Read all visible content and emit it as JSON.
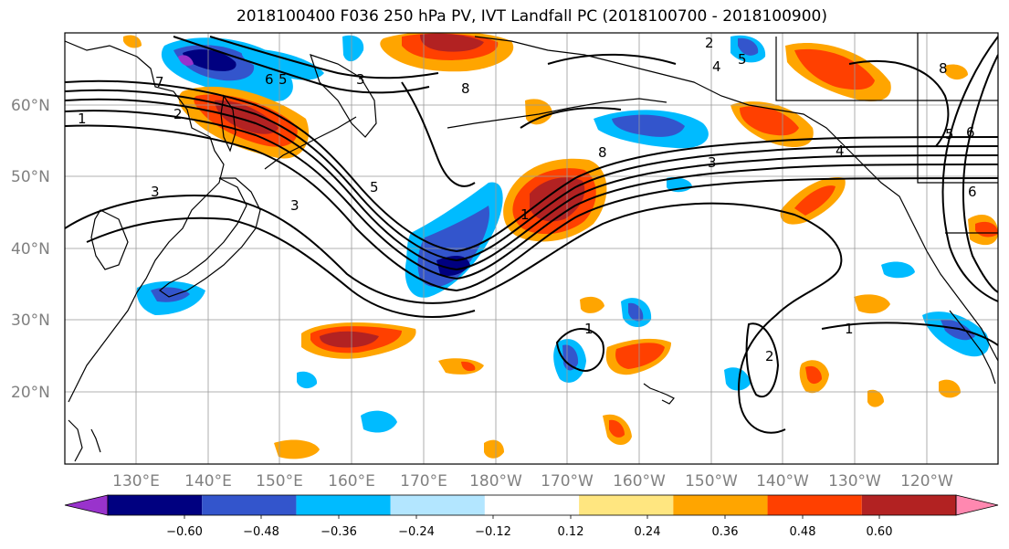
{
  "title": "2018100400 F036 250 hPa PV, IVT Landfall PC (2018100700 - 2018100900)",
  "latitude_labels": [
    "60°N",
    "50°N",
    "40°N",
    "30°N",
    "20°N"
  ],
  "longitude_labels": [
    "130°E",
    "140°E",
    "150°E",
    "160°E",
    "170°E",
    "180°W",
    "170°W",
    "160°W",
    "150°W",
    "140°W",
    "130°W",
    "120°W"
  ],
  "colorbar": {
    "colors": [
      "#9933cc",
      "#000080",
      "#3355cc",
      "#00bbff",
      "#b3e6ff",
      "#ffffff",
      "#ffe680",
      "#ffa500",
      "#ff4000",
      "#b22222",
      "#ff88b0"
    ],
    "tick_labels": [
      "−0.60",
      "−0.48",
      "−0.36",
      "−0.24",
      "−0.12",
      "0.12",
      "0.24",
      "0.36",
      "0.48",
      "0.60"
    ]
  },
  "contour_labels": [
    "1",
    "2",
    "3",
    "4",
    "5",
    "6",
    "7",
    "8"
  ],
  "colors": {
    "grid": "#999999",
    "coast": "#000000",
    "contour": "#000000"
  }
}
